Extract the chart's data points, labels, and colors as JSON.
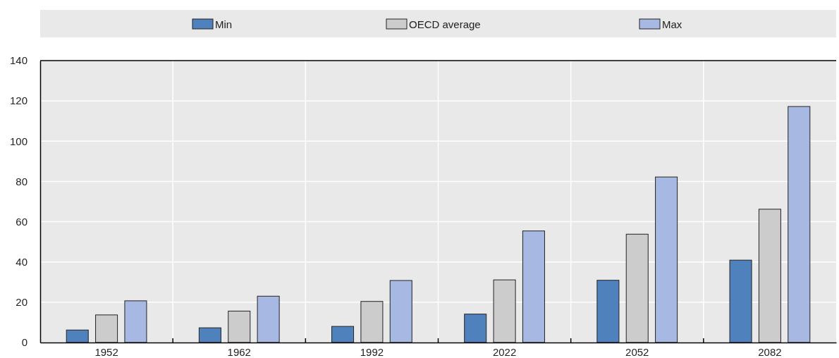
{
  "chart_data": {
    "type": "bar",
    "categories": [
      "1952",
      "1962",
      "1992",
      "2022",
      "2052",
      "2082"
    ],
    "series": [
      {
        "name": "Min",
        "color": "#4f81bd",
        "values": [
          6.2,
          7.3,
          8.0,
          14.1,
          30.9,
          40.9
        ]
      },
      {
        "name": "OECD average",
        "color": "#cccccc",
        "values": [
          13.7,
          15.6,
          20.4,
          31.1,
          53.8,
          66.2
        ]
      },
      {
        "name": "Max",
        "color": "#a7b9e3",
        "values": [
          20.7,
          23.0,
          30.8,
          55.4,
          82.2,
          117.2
        ]
      }
    ],
    "ylim": [
      0,
      140
    ],
    "yticks": [
      0,
      20,
      40,
      60,
      80,
      100,
      120,
      140
    ],
    "grid": true,
    "legend": "top"
  }
}
